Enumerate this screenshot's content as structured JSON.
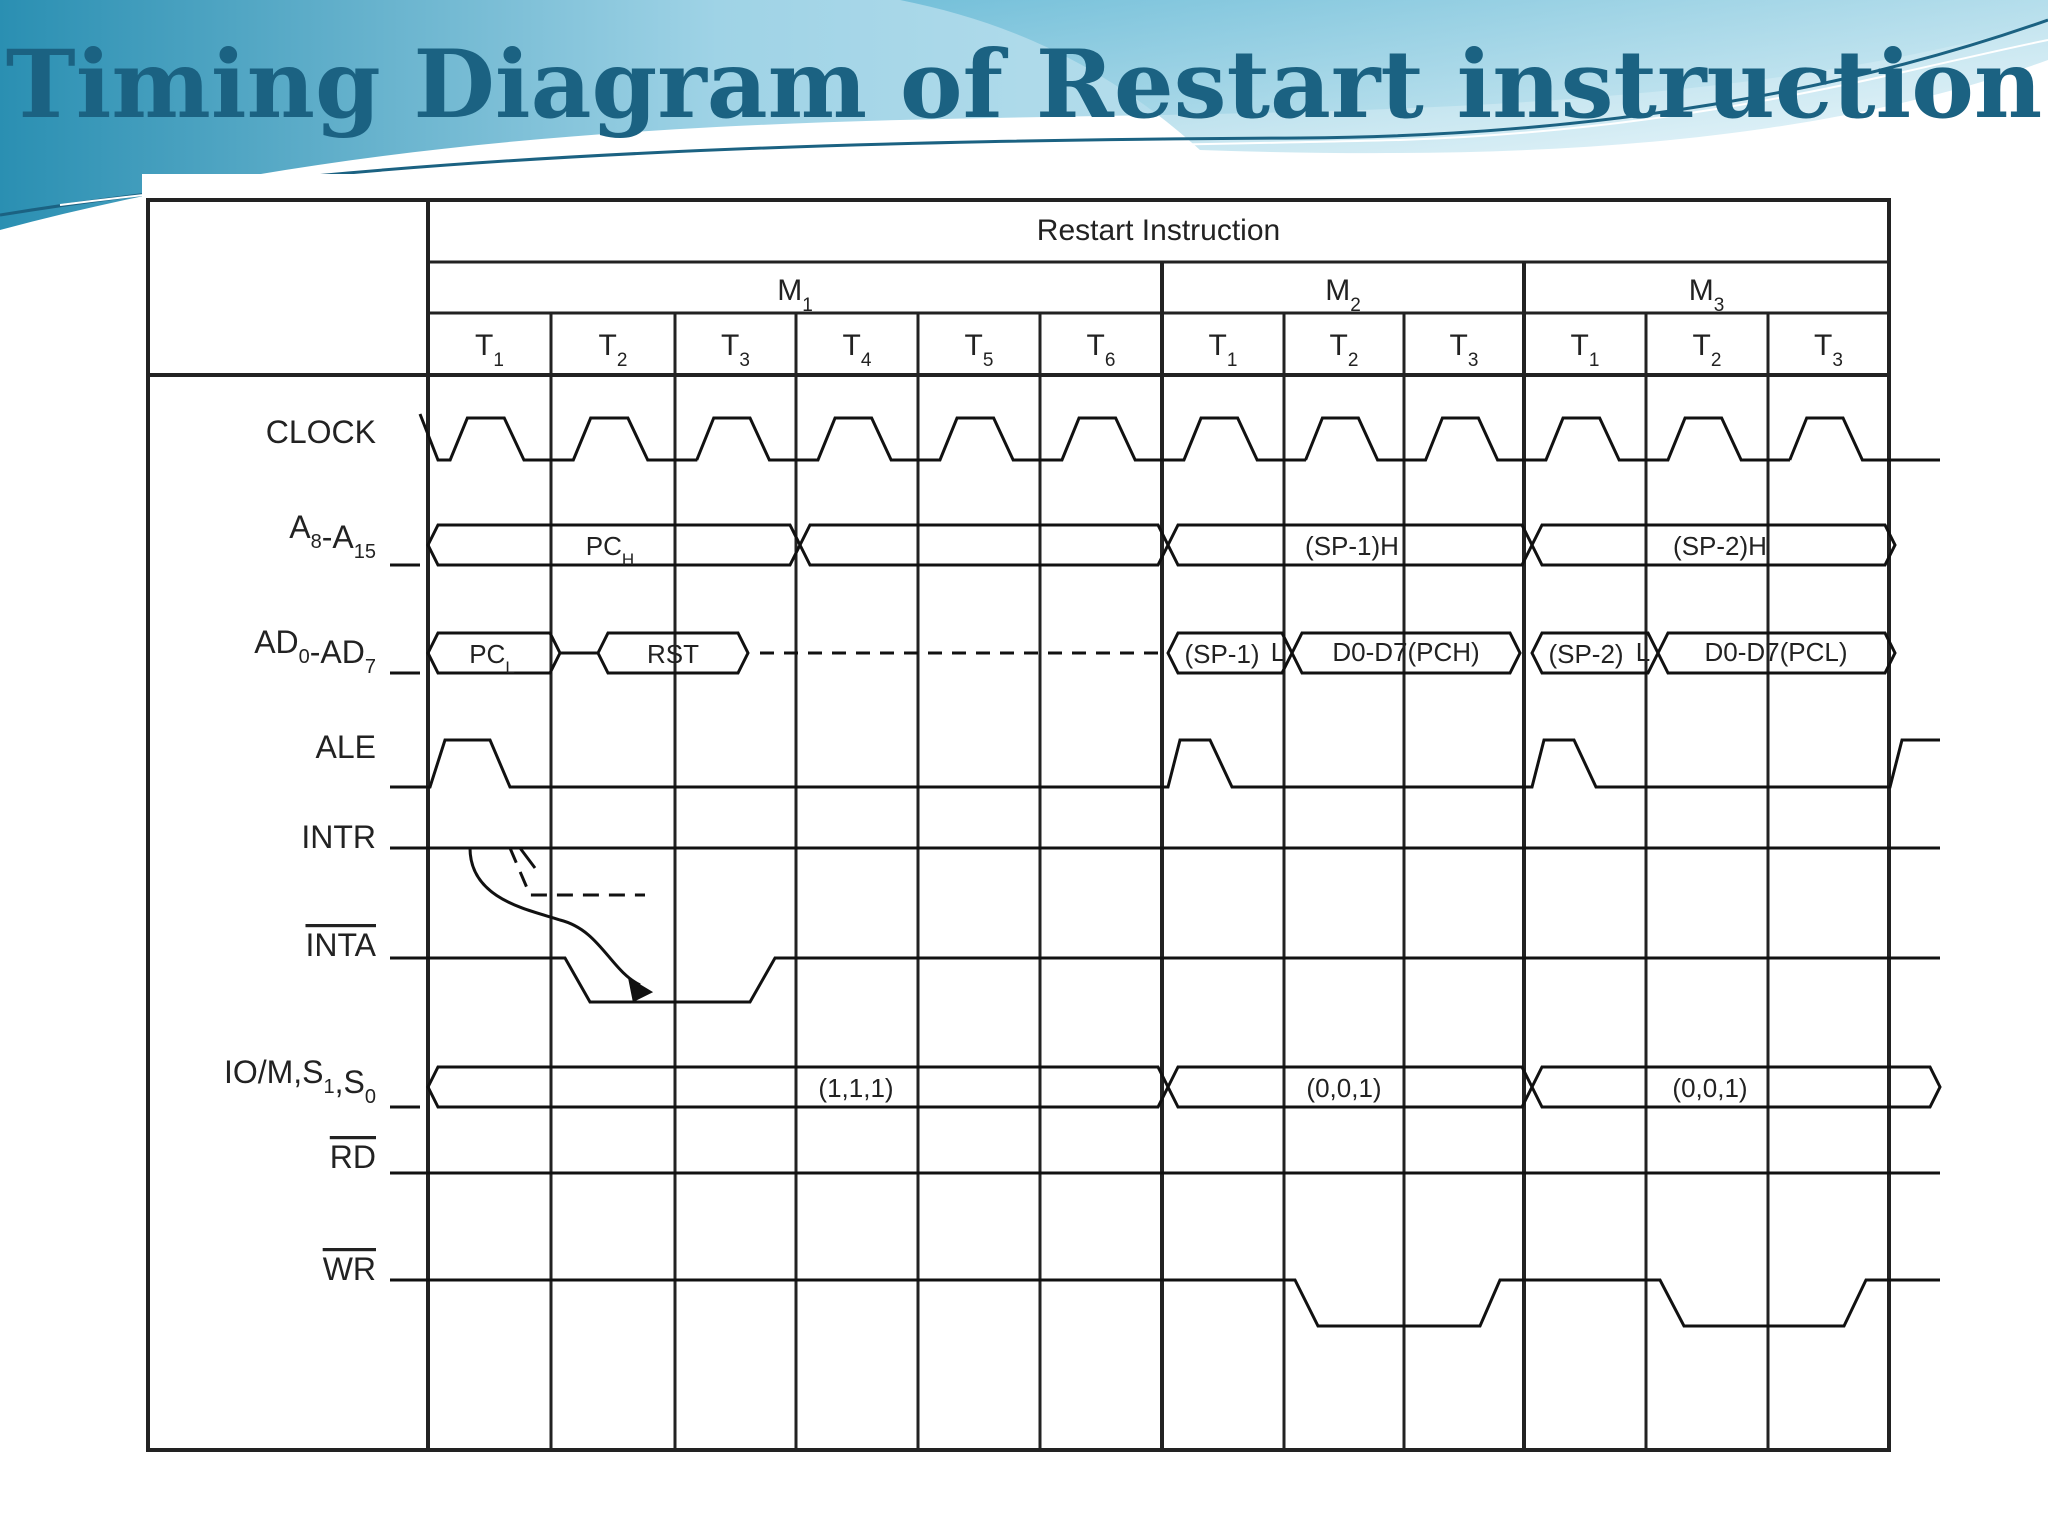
{
  "slide": {
    "title": "Timing Diagram of Restart instruction",
    "title_color": "#1b6282",
    "wave_colors": [
      "#9fd3e6",
      "#5fb6d3",
      "#2a8fb2"
    ]
  },
  "diagram": {
    "header": "Restart Instruction",
    "machine_cycles": [
      {
        "name": "M",
        "sub": "1",
        "states": [
          {
            "name": "T",
            "sub": "1"
          },
          {
            "name": "T",
            "sub": "2"
          },
          {
            "name": "T",
            "sub": "3"
          },
          {
            "name": "T",
            "sub": "4"
          },
          {
            "name": "T",
            "sub": "5"
          },
          {
            "name": "T",
            "sub": "6"
          }
        ]
      },
      {
        "name": "M",
        "sub": "2",
        "states": [
          {
            "name": "T",
            "sub": "1"
          },
          {
            "name": "T",
            "sub": "2"
          },
          {
            "name": "T",
            "sub": "3"
          }
        ]
      },
      {
        "name": "M",
        "sub": "3",
        "states": [
          {
            "name": "T",
            "sub": "1"
          },
          {
            "name": "T",
            "sub": "2"
          },
          {
            "name": "T",
            "sub": "3"
          }
        ]
      }
    ],
    "signals": [
      {
        "id": "clock",
        "label": "CLOCK"
      },
      {
        "id": "addr_hi",
        "label": "A8-A15"
      },
      {
        "id": "addr_lo",
        "label": "AD0-AD7"
      },
      {
        "id": "ale",
        "label": "ALE"
      },
      {
        "id": "intr",
        "label": "INTR"
      },
      {
        "id": "inta",
        "label": "INTA"
      },
      {
        "id": "status",
        "label": "IO/M,S1,S0"
      },
      {
        "id": "rd",
        "label": "RD"
      },
      {
        "id": "wr",
        "label": "WR"
      }
    ],
    "bus_values": {
      "addr_hi": [
        {
          "text": "PC",
          "sub": "H"
        },
        {
          "text": "(SP-1)H",
          "sub": ""
        },
        {
          "text": "(SP-2)H",
          "sub": ""
        }
      ],
      "addr_lo": [
        {
          "text": "PC",
          "sub": "L"
        },
        {
          "text": "RST",
          "sub": ""
        },
        {
          "text": "(SP-1)",
          "sub": ""
        },
        {
          "text": "L",
          "sub": ""
        },
        {
          "text": "D0-D7(PCH)",
          "sub": ""
        },
        {
          "text": "(SP-2)",
          "sub": ""
        },
        {
          "text": "L",
          "sub": ""
        },
        {
          "text": "D0-D7(PCL)",
          "sub": ""
        }
      ],
      "status": [
        {
          "text": "(1,1,1)",
          "sub": ""
        },
        {
          "text": "(0,0,1)",
          "sub": ""
        },
        {
          "text": "(0,0,1)",
          "sub": ""
        }
      ]
    }
  }
}
